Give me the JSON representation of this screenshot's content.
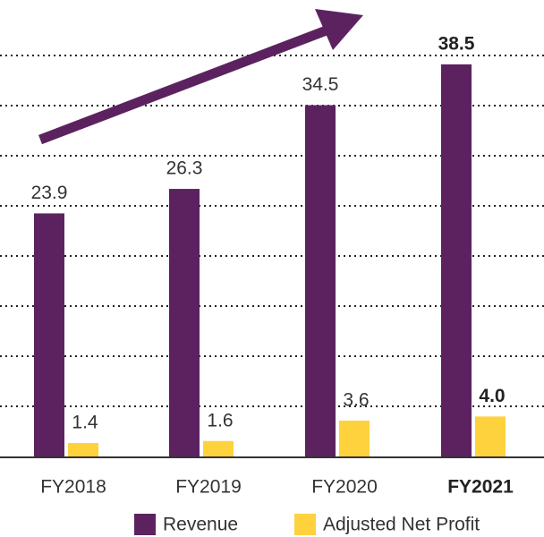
{
  "chart_data": {
    "type": "bar",
    "categories": [
      "FY2018",
      "FY2019",
      "FY2020",
      "FY2021"
    ],
    "series": [
      {
        "name": "Revenue",
        "color": "#5c2260",
        "values": [
          23.9,
          26.3,
          34.5,
          38.5
        ]
      },
      {
        "name": "Adjusted Net Profit",
        "color": "#fdd23c",
        "values": [
          1.4,
          1.6,
          3.6,
          4.0
        ],
        "value_labels": [
          "1.4",
          "1.6",
          "3.6",
          "4.0"
        ]
      }
    ],
    "ylim": [
      0,
      42
    ],
    "highlight_index": 3,
    "legend": "bottom"
  }
}
